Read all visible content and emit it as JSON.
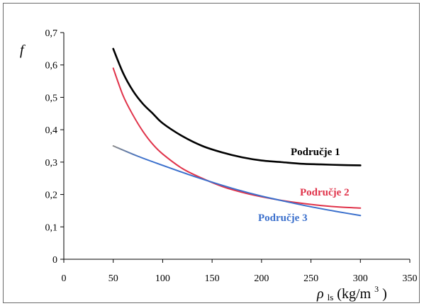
{
  "chart_data": {
    "type": "line",
    "xlabel_symbol": "ρ",
    "xlabel_subscript": "ls",
    "xlabel_unit_open": "(kg/m",
    "xlabel_unit_sup": "3",
    "xlabel_unit_close": ")",
    "ylabel": "f",
    "xlim": [
      0,
      350
    ],
    "ylim": [
      0,
      0.7
    ],
    "xticks": [
      0,
      50,
      100,
      150,
      200,
      250,
      300,
      350
    ],
    "xtick_labels": [
      "0",
      "50",
      "100",
      "150",
      "200",
      "250",
      "300",
      "350"
    ],
    "yticks": [
      0,
      0.1,
      0.2,
      0.3,
      0.4,
      0.5,
      0.6,
      0.7
    ],
    "ytick_labels": [
      "0",
      "0,1",
      "0,2",
      "0,3",
      "0,4",
      "0,5",
      "0,6",
      "0,7"
    ],
    "grid": false,
    "legend": "inline labels near line ends",
    "series": [
      {
        "name": "Područje 1",
        "color": "#000000",
        "x": [
          50,
          60,
          70,
          80,
          90,
          100,
          120,
          140,
          160,
          180,
          200,
          220,
          240,
          260,
          280,
          300
        ],
        "y": [
          0.65,
          0.575,
          0.52,
          0.48,
          0.45,
          0.42,
          0.38,
          0.35,
          0.33,
          0.315,
          0.305,
          0.3,
          0.295,
          0.293,
          0.291,
          0.29
        ]
      },
      {
        "name": "Područje 2",
        "color": "#e0334a",
        "x": [
          50,
          60,
          70,
          80,
          90,
          100,
          120,
          140,
          160,
          180,
          200,
          220,
          240,
          260,
          280,
          300
        ],
        "y": [
          0.59,
          0.505,
          0.445,
          0.395,
          0.355,
          0.325,
          0.28,
          0.25,
          0.225,
          0.207,
          0.193,
          0.182,
          0.173,
          0.166,
          0.161,
          0.158
        ]
      },
      {
        "name": "Područje 3",
        "color": "#3a6fcc",
        "color_start": "#888888",
        "x": [
          50,
          75,
          100,
          125,
          150,
          175,
          200,
          225,
          250,
          275,
          300
        ],
        "y": [
          0.35,
          0.318,
          0.29,
          0.263,
          0.238,
          0.215,
          0.195,
          0.178,
          0.162,
          0.148,
          0.135
        ]
      }
    ]
  }
}
